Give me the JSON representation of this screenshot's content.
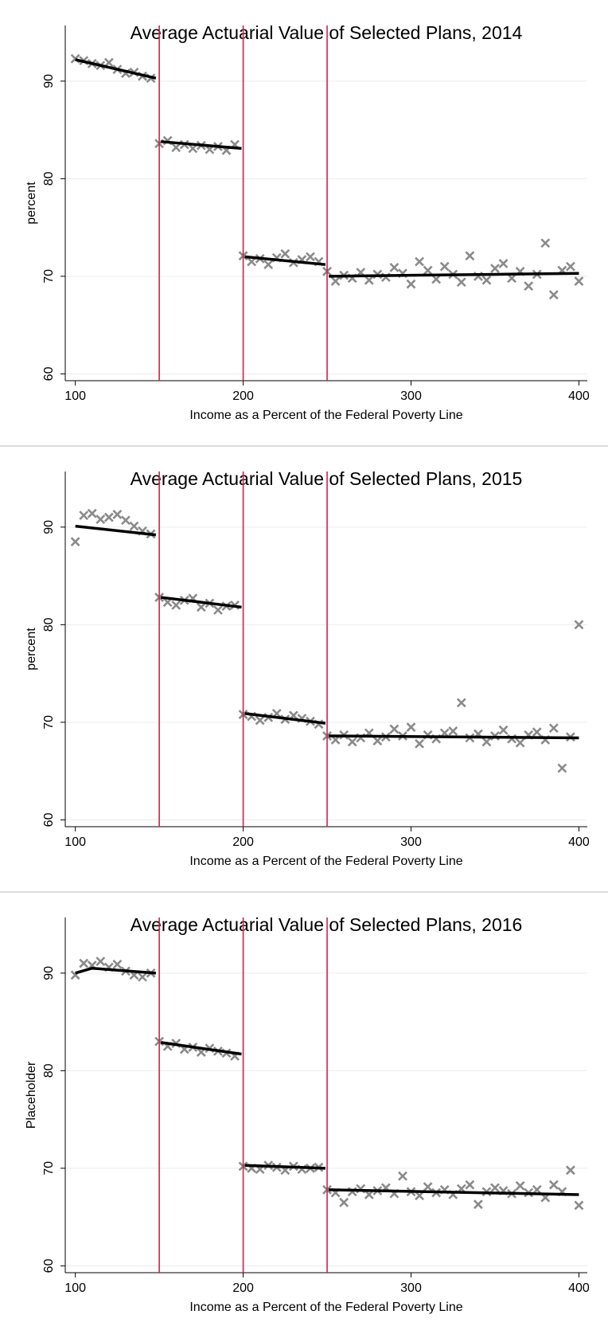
{
  "chart_data": [
    {
      "type": "scatter",
      "title": "Average Actuarial Value of Selected Plans, 2014",
      "xlabel": "Income as a Percent of the Federal Poverty Line",
      "ylabel": "percent",
      "xlim": [
        94,
        405
      ],
      "ylim": [
        59.3,
        95.7
      ],
      "xticks": [
        100,
        200,
        300,
        400
      ],
      "yticks": [
        60,
        70,
        80,
        90
      ],
      "grid": true,
      "vlines": [
        150,
        200,
        250
      ],
      "vline_color": "#c8254a",
      "series": [
        {
          "mode": "markers",
          "color": "#8a8a8a",
          "x": [
            100,
            105,
            110,
            115,
            120,
            125,
            130,
            135,
            140,
            145,
            150,
            155,
            160,
            165,
            170,
            175,
            180,
            185,
            190,
            195,
            200,
            205,
            210,
            215,
            220,
            225,
            230,
            235,
            240,
            245,
            250,
            255,
            260,
            265,
            270,
            275,
            280,
            285,
            290,
            295,
            300,
            305,
            310,
            315,
            320,
            325,
            330,
            335,
            340,
            345,
            350,
            355,
            360,
            365,
            370,
            375,
            380,
            385,
            390,
            395,
            400
          ],
          "values": [
            92.3,
            92.1,
            91.8,
            91.6,
            91.9,
            91.2,
            90.8,
            90.9,
            90.5,
            90.3,
            83.6,
            83.9,
            83.2,
            83.5,
            83.1,
            83.4,
            83.0,
            83.3,
            82.9,
            83.5,
            72.1,
            71.5,
            71.8,
            71.2,
            71.9,
            72.3,
            71.4,
            71.7,
            72.0,
            71.5,
            70.5,
            69.5,
            70.1,
            69.8,
            70.4,
            69.6,
            70.2,
            69.9,
            70.9,
            70.3,
            69.2,
            71.5,
            70.6,
            69.7,
            71.0,
            70.2,
            69.4,
            72.1,
            70.0,
            69.6,
            70.8,
            71.3,
            69.8,
            70.5,
            69.0,
            70.2,
            73.4,
            68.1,
            70.6,
            71.0,
            69.5
          ]
        },
        {
          "mode": "line",
          "color": "#000000",
          "x": [
            100,
            148,
            null,
            151,
            199,
            null,
            201,
            249,
            null,
            251,
            300,
            350,
            400
          ],
          "values": [
            92.2,
            90.3,
            null,
            83.8,
            83.1,
            null,
            72.0,
            71.2,
            null,
            70.0,
            70.1,
            70.2,
            70.3
          ]
        }
      ]
    },
    {
      "type": "scatter",
      "title": "Average Actuarial Value of Selected Plans, 2015",
      "xlabel": "Income as a Percent of the Federal Poverty Line",
      "ylabel": "percent",
      "xlim": [
        94,
        405
      ],
      "ylim": [
        59.3,
        95.7
      ],
      "xticks": [
        100,
        200,
        300,
        400
      ],
      "yticks": [
        60,
        70,
        80,
        90
      ],
      "grid": true,
      "vlines": [
        150,
        200,
        250
      ],
      "vline_color": "#c8254a",
      "series": [
        {
          "mode": "markers",
          "color": "#8a8a8a",
          "x": [
            100,
            105,
            110,
            115,
            120,
            125,
            130,
            135,
            140,
            145,
            150,
            155,
            160,
            165,
            170,
            175,
            180,
            185,
            190,
            195,
            200,
            205,
            210,
            215,
            220,
            225,
            230,
            235,
            240,
            245,
            250,
            255,
            260,
            265,
            270,
            275,
            280,
            285,
            290,
            295,
            300,
            305,
            310,
            315,
            320,
            325,
            330,
            335,
            340,
            345,
            350,
            355,
            360,
            365,
            370,
            375,
            380,
            385,
            390,
            395,
            400
          ],
          "values": [
            88.5,
            91.2,
            91.4,
            90.8,
            91.0,
            91.3,
            90.7,
            90.1,
            89.6,
            89.3,
            82.8,
            82.3,
            82.0,
            82.5,
            82.7,
            81.8,
            82.2,
            81.5,
            81.9,
            82.0,
            70.8,
            70.6,
            70.2,
            70.5,
            70.9,
            70.3,
            70.7,
            70.4,
            70.1,
            69.8,
            68.6,
            68.2,
            68.7,
            68.0,
            68.4,
            68.9,
            68.1,
            68.5,
            69.3,
            68.6,
            69.5,
            67.8,
            68.7,
            68.3,
            68.9,
            69.1,
            72.0,
            68.4,
            68.8,
            68.0,
            68.6,
            69.2,
            68.3,
            67.9,
            68.7,
            69.0,
            68.2,
            69.4,
            65.3,
            68.5,
            80.0
          ]
        },
        {
          "mode": "line",
          "color": "#000000",
          "x": [
            100,
            148,
            null,
            151,
            199,
            null,
            201,
            249,
            null,
            251,
            400
          ],
          "values": [
            90.1,
            89.2,
            null,
            82.8,
            81.8,
            null,
            70.9,
            69.9,
            null,
            68.6,
            68.4
          ]
        }
      ]
    },
    {
      "type": "scatter",
      "title": "Average Actuarial Value of Selected Plans, 2016",
      "xlabel": "Income as a Percent of the Federal Poverty Line",
      "ylabel": "Placeholder",
      "xlim": [
        94,
        405
      ],
      "ylim": [
        59.3,
        95.7
      ],
      "xticks": [
        100,
        200,
        300,
        400
      ],
      "yticks": [
        60,
        70,
        80,
        90
      ],
      "grid": true,
      "vlines": [
        150,
        200,
        250
      ],
      "vline_color": "#c8254a",
      "series": [
        {
          "mode": "markers",
          "color": "#8a8a8a",
          "x": [
            100,
            105,
            110,
            115,
            120,
            125,
            130,
            135,
            140,
            145,
            150,
            155,
            160,
            165,
            170,
            175,
            180,
            185,
            190,
            195,
            200,
            205,
            210,
            215,
            220,
            225,
            230,
            235,
            240,
            245,
            250,
            255,
            260,
            265,
            270,
            275,
            280,
            285,
            290,
            295,
            300,
            305,
            310,
            315,
            320,
            325,
            330,
            335,
            340,
            345,
            350,
            355,
            360,
            365,
            370,
            375,
            380,
            385,
            390,
            395,
            400
          ],
          "values": [
            89.8,
            91.0,
            90.8,
            91.2,
            90.6,
            90.9,
            90.2,
            89.8,
            89.6,
            90.0,
            83.0,
            82.5,
            82.8,
            82.2,
            82.4,
            81.9,
            82.3,
            82.0,
            81.8,
            81.5,
            70.2,
            70.0,
            69.9,
            70.3,
            70.1,
            69.8,
            70.2,
            69.9,
            70.0,
            70.1,
            67.8,
            67.5,
            66.5,
            67.6,
            67.9,
            67.3,
            67.7,
            68.0,
            67.4,
            69.2,
            67.6,
            67.2,
            68.1,
            67.5,
            67.8,
            67.3,
            67.9,
            68.3,
            66.3,
            67.6,
            68.0,
            67.7,
            67.4,
            68.2,
            67.5,
            67.8,
            67.0,
            68.3,
            67.6,
            69.8,
            66.2
          ]
        },
        {
          "mode": "line",
          "color": "#000000",
          "x": [
            100,
            110,
            148,
            null,
            151,
            199,
            null,
            201,
            249,
            null,
            251,
            400
          ],
          "values": [
            90.0,
            90.5,
            90.0,
            null,
            82.9,
            81.7,
            null,
            70.3,
            70.0,
            null,
            67.8,
            67.3
          ]
        }
      ]
    }
  ]
}
